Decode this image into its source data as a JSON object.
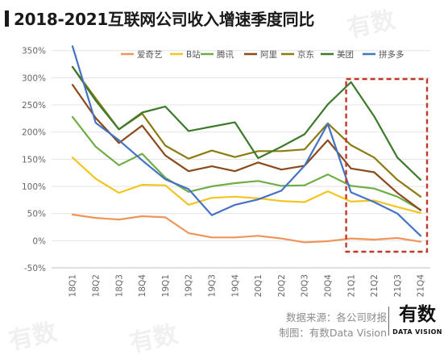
{
  "title": "2018-2021互联网公司收入增速季度同比",
  "watermark_text": "有数",
  "source": "数据来源：各公司财报",
  "credit": "制图：有数Data Vision",
  "brand": {
    "main": "有数",
    "sub": "DATA VISION"
  },
  "chart_data": {
    "type": "line",
    "categories": [
      "18Q1",
      "18Q2",
      "18Q3",
      "18Q4",
      "19Q1",
      "19Q2",
      "19Q3",
      "19Q4",
      "20Q1",
      "20Q2",
      "20Q3",
      "20Q4",
      "21Q1",
      "21Q2",
      "21Q3",
      "21Q4"
    ],
    "y_ticks": [
      "-50%",
      "0%",
      "50%",
      "100%",
      "150%",
      "200%",
      "250%",
      "300%",
      "350%"
    ],
    "ylim": [
      -50,
      360
    ],
    "grid": true,
    "legend_position": "top",
    "highlight": {
      "from": "21Q1",
      "to": "21Q4",
      "color": "#c0392b",
      "style": "dashed"
    },
    "series": [
      {
        "name": "爱奇艺",
        "color": "#f0955a",
        "values": [
          48,
          42,
          39,
          45,
          43,
          14,
          6,
          6,
          9,
          4,
          -3,
          -1,
          4,
          2,
          5,
          -2
        ]
      },
      {
        "name": "B站",
        "color": "#f2c522",
        "values": [
          153,
          114,
          88,
          103,
          102,
          66,
          79,
          81,
          78,
          73,
          71,
          91,
          72,
          74,
          62,
          51
        ]
      },
      {
        "name": "腾讯",
        "color": "#70ad47",
        "values": [
          228,
          173,
          139,
          160,
          116,
          90,
          100,
          106,
          110,
          101,
          102,
          122,
          101,
          96,
          81,
          57
        ]
      },
      {
        "name": "阿里",
        "color": "#8b4a1c",
        "values": [
          287,
          226,
          180,
          212,
          157,
          128,
          137,
          128,
          144,
          131,
          138,
          185,
          133,
          126,
          88,
          56
        ]
      },
      {
        "name": "京东",
        "color": "#8c7b10",
        "values": [
          320,
          262,
          205,
          234,
          175,
          151,
          166,
          154,
          165,
          165,
          168,
          216,
          176,
          153,
          112,
          81
        ]
      },
      {
        "name": "美团",
        "color": "#3d7a2b",
        "values": [
          320,
          258,
          205,
          236,
          247,
          202,
          210,
          218,
          152,
          173,
          196,
          251,
          292,
          229,
          153,
          112
        ]
      },
      {
        "name": "拼多多",
        "color": "#4472c4",
        "values": [
          358,
          217,
          185,
          148,
          113,
          95,
          47,
          66,
          76,
          92,
          138,
          215,
          89,
          71,
          50,
          9
        ]
      }
    ]
  }
}
